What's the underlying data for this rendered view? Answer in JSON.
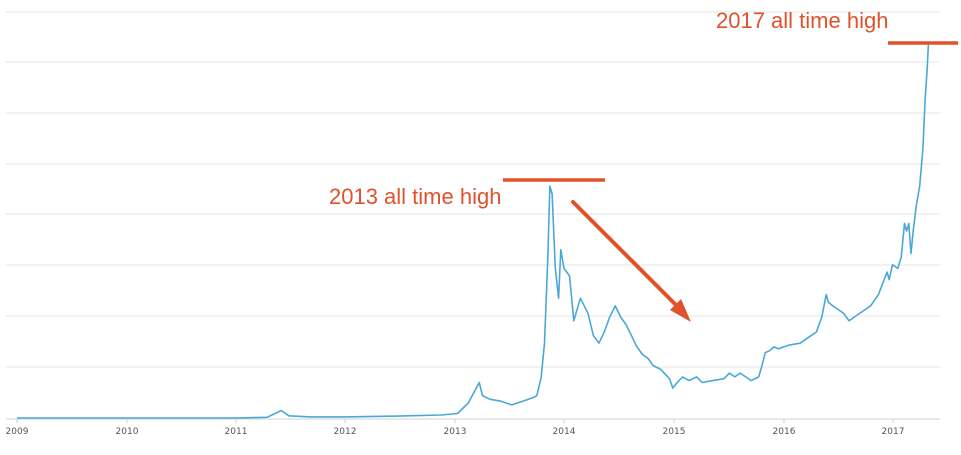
{
  "chart_data": {
    "type": "line",
    "title": "",
    "xlabel": "",
    "ylabel": "",
    "x_ticks": [
      "2009",
      "2010",
      "2011",
      "2012",
      "2013",
      "2014",
      "2015",
      "2016",
      "2017"
    ],
    "xlim": [
      2009.0,
      2017.45
    ],
    "y_relative_scale": "linear, unlabeled; values as fraction of 2017 peak",
    "ylim": [
      0,
      1.1
    ],
    "grid": true,
    "series": [
      {
        "color": "#4aa8d8",
        "points": [
          [
            2009.0,
            0.0
          ],
          [
            2010.0,
            0.0
          ],
          [
            2011.0,
            0.0
          ],
          [
            2011.3,
            0.002
          ],
          [
            2011.43,
            0.02
          ],
          [
            2011.5,
            0.006
          ],
          [
            2011.7,
            0.003
          ],
          [
            2012.0,
            0.003
          ],
          [
            2012.5,
            0.005
          ],
          [
            2012.9,
            0.008
          ],
          [
            2013.05,
            0.012
          ],
          [
            2013.15,
            0.04
          ],
          [
            2013.25,
            0.095
          ],
          [
            2013.28,
            0.06
          ],
          [
            2013.35,
            0.05
          ],
          [
            2013.45,
            0.045
          ],
          [
            2013.55,
            0.035
          ],
          [
            2013.65,
            0.045
          ],
          [
            2013.75,
            0.055
          ],
          [
            2013.78,
            0.06
          ],
          [
            2013.82,
            0.11
          ],
          [
            2013.85,
            0.2
          ],
          [
            2013.88,
            0.42
          ],
          [
            2013.9,
            0.62
          ],
          [
            2013.92,
            0.6
          ],
          [
            2013.95,
            0.4
          ],
          [
            2013.98,
            0.32
          ],
          [
            2014.0,
            0.45
          ],
          [
            2014.03,
            0.4
          ],
          [
            2014.08,
            0.38
          ],
          [
            2014.12,
            0.26
          ],
          [
            2014.18,
            0.32
          ],
          [
            2014.25,
            0.28
          ],
          [
            2014.3,
            0.22
          ],
          [
            2014.35,
            0.2
          ],
          [
            2014.4,
            0.23
          ],
          [
            2014.45,
            0.27
          ],
          [
            2014.5,
            0.3
          ],
          [
            2014.55,
            0.27
          ],
          [
            2014.6,
            0.25
          ],
          [
            2014.65,
            0.22
          ],
          [
            2014.7,
            0.19
          ],
          [
            2014.75,
            0.17
          ],
          [
            2014.8,
            0.16
          ],
          [
            2014.85,
            0.14
          ],
          [
            2014.92,
            0.13
          ],
          [
            2015.0,
            0.105
          ],
          [
            2015.03,
            0.08
          ],
          [
            2015.07,
            0.095
          ],
          [
            2015.12,
            0.11
          ],
          [
            2015.18,
            0.1
          ],
          [
            2015.25,
            0.11
          ],
          [
            2015.3,
            0.095
          ],
          [
            2015.4,
            0.1
          ],
          [
            2015.5,
            0.105
          ],
          [
            2015.55,
            0.12
          ],
          [
            2015.6,
            0.11
          ],
          [
            2015.65,
            0.12
          ],
          [
            2015.7,
            0.11
          ],
          [
            2015.75,
            0.1
          ],
          [
            2015.82,
            0.11
          ],
          [
            2015.85,
            0.14
          ],
          [
            2015.88,
            0.175
          ],
          [
            2015.92,
            0.18
          ],
          [
            2015.96,
            0.19
          ],
          [
            2016.0,
            0.185
          ],
          [
            2016.05,
            0.19
          ],
          [
            2016.1,
            0.195
          ],
          [
            2016.2,
            0.2
          ],
          [
            2016.3,
            0.22
          ],
          [
            2016.35,
            0.23
          ],
          [
            2016.4,
            0.27
          ],
          [
            2016.44,
            0.33
          ],
          [
            2016.46,
            0.31
          ],
          [
            2016.5,
            0.3
          ],
          [
            2016.55,
            0.29
          ],
          [
            2016.6,
            0.28
          ],
          [
            2016.65,
            0.26
          ],
          [
            2016.7,
            0.27
          ],
          [
            2016.8,
            0.29
          ],
          [
            2016.85,
            0.3
          ],
          [
            2016.92,
            0.33
          ],
          [
            2017.0,
            0.39
          ],
          [
            2017.02,
            0.37
          ],
          [
            2017.05,
            0.41
          ],
          [
            2017.1,
            0.4
          ],
          [
            2017.13,
            0.43
          ],
          [
            2017.16,
            0.52
          ],
          [
            2017.18,
            0.5
          ],
          [
            2017.2,
            0.52
          ],
          [
            2017.22,
            0.44
          ],
          [
            2017.24,
            0.5
          ],
          [
            2017.27,
            0.57
          ],
          [
            2017.3,
            0.62
          ],
          [
            2017.33,
            0.72
          ],
          [
            2017.35,
            0.85
          ],
          [
            2017.37,
            0.94
          ],
          [
            2017.38,
            1.0
          ]
        ]
      }
    ],
    "annotations": [
      {
        "text": "2013 all time high",
        "color": "#e0522c",
        "level": 0.63,
        "x_start": 2013.45,
        "x_end": 2014.38
      },
      {
        "text": "2017 all time high",
        "color": "#e0522c",
        "level": 1.0,
        "x_start": 2017.0,
        "x_end": 2017.35
      }
    ],
    "arrow": {
      "color": "#e0522c",
      "from": [
        2014.08,
        0.6
      ],
      "to": [
        2015.18,
        0.28
      ]
    }
  }
}
